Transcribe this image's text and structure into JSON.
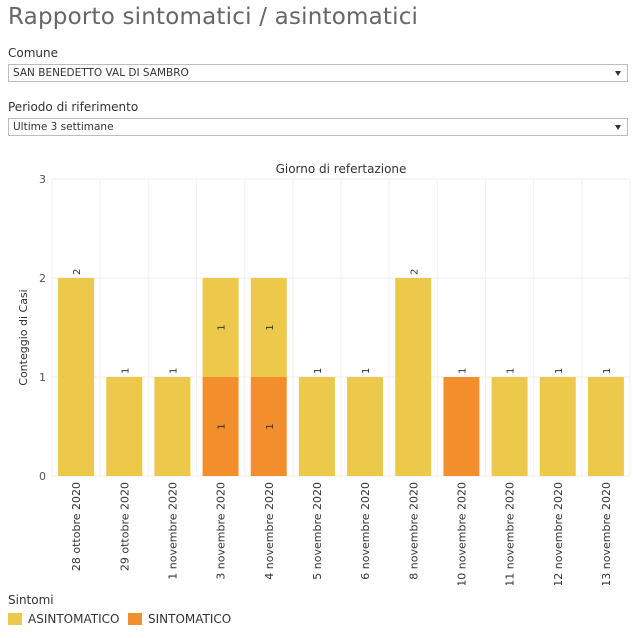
{
  "page_title": "Rapporto sintomatici / asintomatici",
  "filters": {
    "comune": {
      "label": "Comune",
      "value": "SAN BENEDETTO VAL DI SAMBRO"
    },
    "periodo": {
      "label": "Periodo di riferimento",
      "value": "Ultime 3 settimane"
    }
  },
  "legend": {
    "title": "Sintomi",
    "items": [
      {
        "label": "ASINTOMATICO",
        "color": "#ecc94b"
      },
      {
        "label": "SINTOMATICO",
        "color": "#f28e2b"
      }
    ]
  },
  "chart_data": {
    "type": "bar",
    "stacked": true,
    "title": "Giorno di refertazione",
    "ylabel": "Conteggio di Casi",
    "xlabel": "",
    "ylim": [
      0,
      3
    ],
    "yticks": [
      0,
      1,
      2,
      3
    ],
    "categories": [
      "28 ottobre 2020",
      "29 ottobre 2020",
      "1 novembre 2020",
      "3 novembre 2020",
      "4 novembre 2020",
      "5 novembre 2020",
      "6 novembre 2020",
      "8 novembre 2020",
      "10 novembre 2020",
      "11 novembre 2020",
      "12 novembre 2020",
      "13 novembre 2020"
    ],
    "series": [
      {
        "name": "SINTOMATICO",
        "color": "#f28e2b",
        "values": [
          0,
          0,
          0,
          1,
          1,
          0,
          0,
          0,
          1,
          0,
          0,
          0
        ]
      },
      {
        "name": "ASINTOMATICO",
        "color": "#ecc94b",
        "values": [
          2,
          1,
          1,
          1,
          1,
          1,
          1,
          2,
          0,
          1,
          1,
          1
        ]
      }
    ]
  }
}
